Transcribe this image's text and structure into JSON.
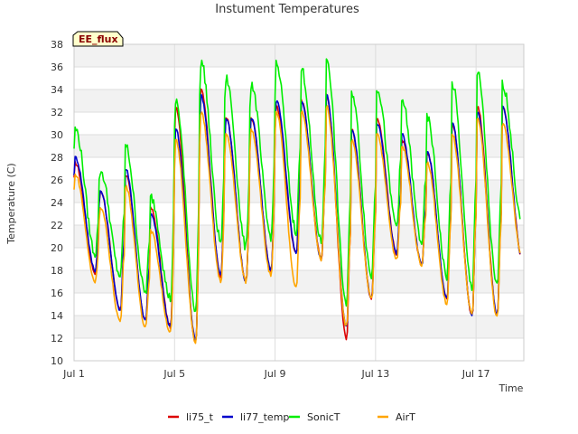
{
  "chart_data": {
    "type": "line",
    "title": "Instument Temperatures",
    "badge": "EE_flux",
    "xlabel": "Time",
    "ylabel": "Temperature (C)",
    "xlim": [
      1,
      18.9
    ],
    "ylim": [
      10,
      38
    ],
    "yticks": [
      10,
      12,
      14,
      16,
      18,
      20,
      22,
      24,
      26,
      28,
      30,
      32,
      34,
      36,
      38
    ],
    "xticks": [
      {
        "value": 1,
        "label": "Jul 1"
      },
      {
        "value": 5,
        "label": "Jul 5"
      },
      {
        "value": 9,
        "label": "Jul 9"
      },
      {
        "value": 13,
        "label": "Jul 13"
      },
      {
        "value": 17,
        "label": "Jul 17"
      }
    ],
    "grid": true,
    "legend_position": "bottom",
    "daily_start": 1,
    "series": [
      {
        "name": "li75_t",
        "color": "#dd0000",
        "highs": [
          27.5,
          25.0,
          26.5,
          23.5,
          32.5,
          34.0,
          31.5,
          31.5,
          32.5,
          33.0,
          33.5,
          30.5,
          31.5,
          29.5,
          28.5,
          31.0,
          32.5,
          32.5
        ],
        "lows": [
          17.8,
          14.5,
          13.5,
          13.0,
          11.5,
          17.5,
          17.0,
          18.0,
          19.5,
          19.0,
          12.0,
          15.5,
          19.5,
          18.5,
          15.5,
          14.0,
          14.0,
          19.0
        ]
      },
      {
        "name": "li77_temp",
        "color": "#0000cc",
        "highs": [
          28.0,
          25.0,
          27.0,
          23.0,
          30.5,
          33.5,
          31.5,
          31.5,
          33.0,
          33.0,
          33.5,
          30.5,
          31.0,
          30.0,
          28.5,
          31.0,
          32.0,
          32.5
        ],
        "lows": [
          18.0,
          14.5,
          13.5,
          13.0,
          11.8,
          17.5,
          17.0,
          18.0,
          19.5,
          19.0,
          13.0,
          15.5,
          19.5,
          18.5,
          15.5,
          14.0,
          14.0,
          19.0
        ]
      },
      {
        "name": "SonicT",
        "color": "#00ee00",
        "highs": [
          30.5,
          26.8,
          29.0,
          24.5,
          33.0,
          36.5,
          35.0,
          34.5,
          36.2,
          35.8,
          36.8,
          33.8,
          34.2,
          33.0,
          31.5,
          34.5,
          35.5,
          34.5
        ],
        "lows": [
          19.5,
          17.5,
          16.0,
          15.5,
          14.5,
          20.5,
          20.0,
          21.0,
          21.5,
          20.5,
          15.0,
          17.5,
          22.0,
          20.5,
          17.5,
          16.5,
          16.5,
          22.0
        ]
      },
      {
        "name": "AirT",
        "color": "#ffa500",
        "highs": [
          26.5,
          23.5,
          25.5,
          21.5,
          29.5,
          32.0,
          30.0,
          30.5,
          32.0,
          32.0,
          32.5,
          29.5,
          30.0,
          29.0,
          27.5,
          30.0,
          31.5,
          31.0
        ],
        "lows": [
          17.0,
          13.5,
          13.0,
          12.5,
          11.5,
          17.0,
          17.0,
          17.5,
          16.5,
          19.0,
          13.0,
          15.5,
          19.0,
          18.5,
          15.0,
          14.0,
          13.8,
          19.0
        ]
      }
    ]
  }
}
